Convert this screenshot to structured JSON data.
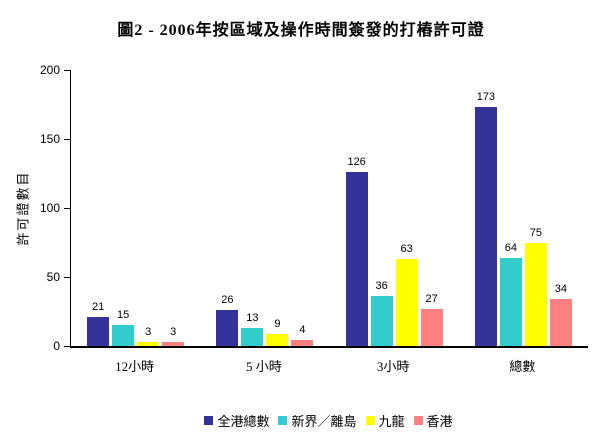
{
  "title": "圖2 - 2006年按區域及操作時間簽發的打樁許可證",
  "chart_data": {
    "type": "bar",
    "title": "圖2 - 2006年按區域及操作時間簽發的打樁許可證",
    "categories": [
      "12小時",
      "5 小時",
      "3小時",
      "總數"
    ],
    "series": [
      {
        "name": "全港總數",
        "color": "#333399",
        "values": [
          21,
          26,
          126,
          173
        ]
      },
      {
        "name": "新界／離島",
        "color": "#33CCCC",
        "values": [
          15,
          13,
          36,
          64
        ]
      },
      {
        "name": "九龍",
        "color": "#FFFF00",
        "values": [
          3,
          9,
          63,
          75
        ]
      },
      {
        "name": "香港",
        "color": "#FF8080",
        "values": [
          3,
          4,
          27,
          34
        ]
      }
    ],
    "xlabel": "",
    "ylabel": "許可證數目",
    "ylim": [
      0,
      200
    ],
    "yticks": [
      0,
      50,
      100,
      150,
      200
    ],
    "grid": false,
    "legend_position": "bottom",
    "value_labels": true,
    "axis_color": "#000000",
    "background_color": "#FFFFFF"
  }
}
